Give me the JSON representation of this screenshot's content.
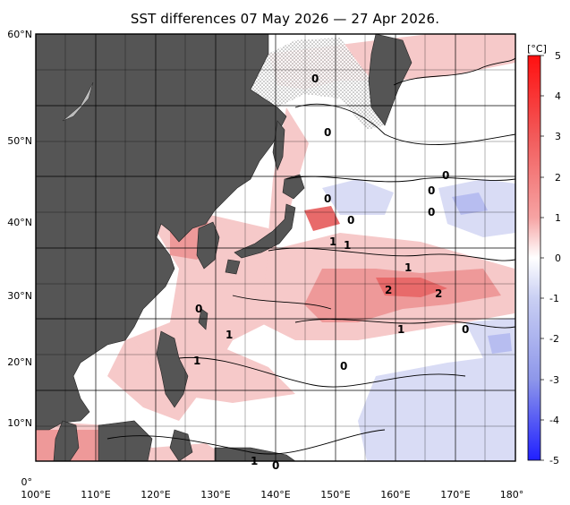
{
  "title": "SST differences 07 May 2026 — 27 Apr 2026.",
  "colorbar": {
    "unit": "[°C]",
    "ticks": [
      "5",
      "4",
      "3",
      "2",
      "1",
      "0",
      "-1",
      "-2",
      "-3",
      "-4",
      "-5"
    ]
  },
  "axes": {
    "lat_labels": [
      "60°N",
      "50°N",
      "40°N",
      "30°N",
      "20°N",
      "10°N",
      "0°"
    ],
    "lon_labels": [
      "100°E",
      "110°E",
      "120°E",
      "130°E",
      "140°E",
      "150°E",
      "160°E",
      "170°E",
      "180°"
    ]
  },
  "contour_labels": [
    "0",
    "0",
    "0",
    "0",
    "0",
    "0",
    "0",
    "1",
    "1",
    "1",
    "2",
    "2",
    "1",
    "1",
    "1",
    "0",
    "0",
    "0",
    "1",
    "0"
  ],
  "colors": {
    "land": "#555555",
    "warm_light": "#f6c9c9",
    "warm_mid": "#ee9999",
    "warm_strong": "#e86a6a",
    "cool_light": "#d9dcf5",
    "cool_mid": "#b7bdf0",
    "ice": "#d8d8d8"
  }
}
